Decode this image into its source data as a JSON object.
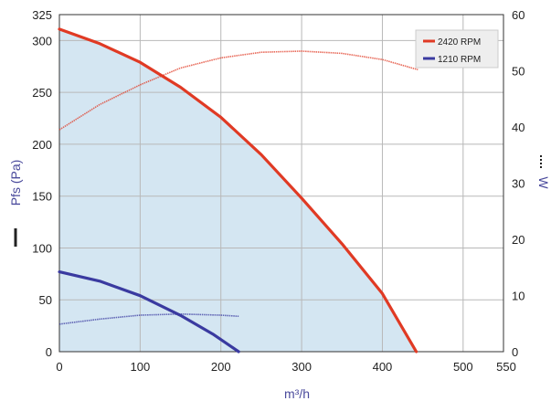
{
  "chart_data": {
    "type": "line",
    "x": {
      "label": "m³/h",
      "range": [
        0,
        550
      ],
      "ticks": [
        0,
        100,
        200,
        300,
        400,
        500,
        550
      ]
    },
    "y_left": {
      "label": "Pfs (Pa)",
      "range": [
        0,
        325
      ],
      "ticks": [
        0,
        50,
        100,
        150,
        200,
        250,
        300,
        325
      ]
    },
    "y_right": {
      "label": "W",
      "range": [
        0,
        60
      ],
      "ticks": [
        0,
        10,
        20,
        30,
        40,
        50,
        60
      ]
    },
    "grid": true,
    "legend_position": "top-right",
    "series": [
      {
        "name": "2420 RPM",
        "color": "#e03a24",
        "pressure_points": [
          [
            0,
            311
          ],
          [
            50,
            297
          ],
          [
            100,
            279
          ],
          [
            150,
            255
          ],
          [
            200,
            226
          ],
          [
            250,
            190
          ],
          [
            300,
            148
          ],
          [
            350,
            104
          ],
          [
            400,
            56
          ],
          [
            442,
            0
          ]
        ],
        "power_points": [
          [
            0,
            39.5
          ],
          [
            50,
            44
          ],
          [
            100,
            47.5
          ],
          [
            150,
            50.5
          ],
          [
            200,
            52.3
          ],
          [
            250,
            53.3
          ],
          [
            300,
            53.5
          ],
          [
            350,
            53.1
          ],
          [
            400,
            52
          ],
          [
            444,
            50.2
          ]
        ]
      },
      {
        "name": "1210 RPM",
        "color": "#3a3aa0",
        "pressure_points": [
          [
            0,
            77
          ],
          [
            50,
            68
          ],
          [
            100,
            54
          ],
          [
            150,
            35
          ],
          [
            190,
            17
          ],
          [
            222,
            0
          ]
        ],
        "power_points": [
          [
            0,
            4.9
          ],
          [
            50,
            5.8
          ],
          [
            100,
            6.5
          ],
          [
            150,
            6.7
          ],
          [
            200,
            6.5
          ],
          [
            222,
            6.3
          ]
        ]
      }
    ]
  }
}
